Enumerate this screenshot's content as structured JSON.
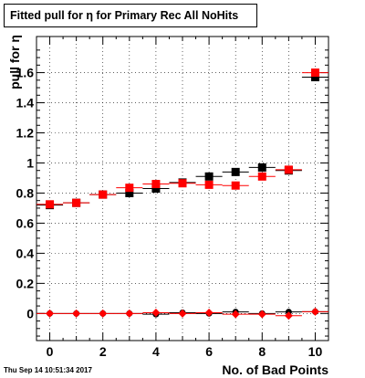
{
  "title": "Fitted pull for η for Primary Rec All NoHits",
  "timestamp": "Thu Sep 14 10:51:34 2017",
  "chart_data": {
    "type": "scatter",
    "title": "Fitted pull for η for Primary Rec All NoHits",
    "xlabel": "No. of Bad Points",
    "ylabel": "pull for  η",
    "xlim": [
      -0.5,
      10.5
    ],
    "ylim": [
      -0.18,
      1.84
    ],
    "xticks": [
      0,
      2,
      4,
      6,
      8,
      10
    ],
    "yticks": [
      0,
      0.2,
      0.4,
      0.6,
      0.8,
      1,
      1.2,
      1.4,
      1.6
    ],
    "ytick_labels": [
      "0",
      "0.2",
      "0.4",
      "0.6",
      "0.8",
      "1",
      "1.2",
      "1.4",
      "1.6"
    ],
    "grid": true,
    "series": [
      {
        "marker": "square",
        "color": "#000000",
        "x": [
          0,
          1,
          2,
          3,
          4,
          5,
          6,
          7,
          8,
          9,
          10
        ],
        "y": [
          0.72,
          0.735,
          0.79,
          0.8,
          0.83,
          0.87,
          0.91,
          0.94,
          0.97,
          0.95,
          1.57
        ]
      },
      {
        "marker": "square",
        "color": "#ff0000",
        "x": [
          0,
          1,
          2,
          3,
          4,
          5,
          6,
          7,
          8,
          9,
          10
        ],
        "y": [
          0.725,
          0.735,
          0.79,
          0.835,
          0.86,
          0.865,
          0.855,
          0.85,
          0.91,
          0.955,
          1.6
        ]
      },
      {
        "marker": "circle",
        "color": "#000000",
        "x": [
          0,
          1,
          2,
          3,
          4,
          5,
          6,
          7,
          8,
          9,
          10
        ],
        "y": [
          0.0,
          0.0,
          0.0,
          0.0,
          -0.005,
          0.005,
          0.0,
          0.01,
          0.0,
          0.01,
          0.012
        ]
      },
      {
        "marker": "diamond",
        "color": "#ff0000",
        "x": [
          0,
          1,
          2,
          3,
          4,
          5,
          6,
          7,
          8,
          9,
          10
        ],
        "y": [
          0.0,
          0.0,
          0.0,
          0.0,
          0.005,
          0.0,
          0.005,
          -0.005,
          -0.005,
          -0.015,
          0.012
        ]
      }
    ]
  }
}
